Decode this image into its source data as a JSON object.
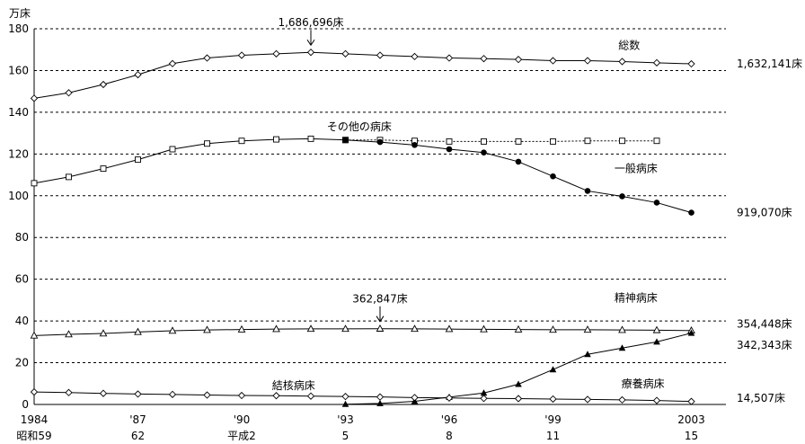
{
  "chart_data": {
    "type": "line",
    "y_unit": "万床",
    "ylim": [
      0,
      180
    ],
    "y_ticks": [
      "0",
      "20",
      "40",
      "60",
      "80",
      "100",
      "120",
      "140",
      "160",
      "180"
    ],
    "grid": "horizontal dashed",
    "x": [
      1984,
      1985,
      1986,
      1987,
      1988,
      1989,
      1990,
      1991,
      1992,
      1993,
      1994,
      1995,
      1996,
      1997,
      1998,
      1999,
      2000,
      2001,
      2002,
      2003
    ],
    "x_tick_labels": [
      {
        "x": 1984,
        "western": "1984",
        "japanese": "昭和59"
      },
      {
        "x": 1987,
        "western": "'87",
        "japanese": "62"
      },
      {
        "x": 1990,
        "western": "'90",
        "japanese": "平成2"
      },
      {
        "x": 1993,
        "western": "'93",
        "japanese": "5"
      },
      {
        "x": 1996,
        "western": "'96",
        "japanese": "8"
      },
      {
        "x": 1999,
        "western": "'99",
        "japanese": "11"
      },
      {
        "x": 2003,
        "western": "2003",
        "japanese": "15"
      }
    ],
    "series": [
      {
        "name": "総数",
        "marker": "diamond-open",
        "line": "solid",
        "x": [
          1984,
          1985,
          1986,
          1987,
          1988,
          1989,
          1990,
          1991,
          1992,
          1993,
          1994,
          1995,
          1996,
          1997,
          1998,
          1999,
          2000,
          2001,
          2002,
          2003
        ],
        "values": [
          146.7,
          149.3,
          153.3,
          158.0,
          163.3,
          166.0,
          167.3,
          168.0,
          168.7,
          168.0,
          167.3,
          166.7,
          166.0,
          165.7,
          165.3,
          164.7,
          164.7,
          164.3,
          163.7,
          163.2
        ]
      },
      {
        "name": "その他の病床",
        "marker": "square-open",
        "line": "solid",
        "x": [
          1984,
          1985,
          1986,
          1987,
          1988,
          1989,
          1990,
          1991,
          1992,
          1993
        ],
        "values": [
          106.0,
          109.0,
          113.0,
          117.3,
          122.3,
          125.0,
          126.3,
          127.0,
          127.3,
          126.7
        ]
      },
      {
        "name": "その他の病床",
        "marker": "square-open",
        "line": "dashed",
        "x": [
          1993,
          1994,
          1995,
          1996,
          1997,
          1998,
          1999,
          2000,
          2001,
          2002
        ],
        "values": [
          126.7,
          126.7,
          126.3,
          126.0,
          126.0,
          126.0,
          126.0,
          126.3,
          126.3,
          126.3
        ]
      },
      {
        "name": "一般病床",
        "marker": "circle-filled",
        "line": "solid",
        "x": [
          1993,
          1994,
          1995,
          1996,
          1997,
          1998,
          1999,
          2000,
          2001,
          2002,
          2003
        ],
        "values": [
          126.7,
          125.7,
          124.3,
          122.3,
          120.7,
          116.3,
          109.3,
          102.3,
          99.7,
          96.7,
          91.9
        ]
      },
      {
        "name": "精神病床",
        "marker": "triangle-open",
        "line": "solid",
        "x": [
          1984,
          1985,
          1986,
          1987,
          1988,
          1989,
          1990,
          1991,
          1992,
          1993,
          1994,
          1995,
          1996,
          1997,
          1998,
          1999,
          2000,
          2001,
          2002,
          2003
        ],
        "values": [
          33.0,
          33.6,
          34.0,
          34.7,
          35.3,
          35.7,
          35.9,
          36.1,
          36.2,
          36.2,
          36.3,
          36.2,
          36.1,
          36.0,
          35.9,
          35.8,
          35.8,
          35.7,
          35.6,
          35.4
        ]
      },
      {
        "name": "療養病床",
        "marker": "triangle-filled",
        "line": "solid",
        "x": [
          1993,
          1994,
          1995,
          1996,
          1997,
          1998,
          1999,
          2000,
          2001,
          2002,
          2003
        ],
        "values": [
          0.1,
          0.5,
          1.5,
          3.5,
          5.5,
          9.7,
          16.7,
          24.0,
          27.0,
          30.0,
          34.2
        ]
      },
      {
        "name": "結核病床",
        "marker": "diamond-open",
        "line": "solid",
        "x": [
          1984,
          1985,
          1986,
          1987,
          1988,
          1989,
          1990,
          1991,
          1992,
          1993,
          1994,
          1995,
          1996,
          1997,
          1998,
          1999,
          2000,
          2001,
          2002,
          2003
        ],
        "values": [
          6.0,
          5.7,
          5.3,
          5.0,
          4.8,
          4.5,
          4.3,
          4.2,
          4.0,
          3.8,
          3.6,
          3.3,
          3.1,
          2.9,
          2.8,
          2.6,
          2.4,
          2.2,
          1.9,
          1.45
        ]
      }
    ],
    "annotations": [
      {
        "text": "1,686,696床",
        "x": 1992,
        "y": 168.7,
        "arrow": "down"
      },
      {
        "text": "362,847床",
        "x": 1994,
        "y": 36.3,
        "arrow": "down"
      },
      {
        "text": "1,632,141床",
        "x": 2003,
        "y": 163.2,
        "anchor": "right-end"
      },
      {
        "text": "919,070床",
        "x": 2003,
        "y": 91.9,
        "anchor": "right-end"
      },
      {
        "text": "354,448床",
        "x": 2003,
        "y": 38.5,
        "anchor": "right-end"
      },
      {
        "text": "342,343床",
        "x": 2003,
        "y": 28.5,
        "anchor": "right-end"
      },
      {
        "text": "14,507床",
        "x": 2003,
        "y": 3.0,
        "anchor": "right-end"
      }
    ],
    "series_labels": [
      {
        "text": "総数",
        "x": 2001.2,
        "y": 172
      },
      {
        "text": "その他の病床",
        "x": 1993.4,
        "y": 133
      },
      {
        "text": "一般病床",
        "x": 2001.4,
        "y": 113
      },
      {
        "text": "精神病床",
        "x": 2001.4,
        "y": 51
      },
      {
        "text": "療養病床",
        "x": 2001.6,
        "y": 10
      },
      {
        "text": "結核病床",
        "x": 1991.5,
        "y": 9
      }
    ]
  }
}
